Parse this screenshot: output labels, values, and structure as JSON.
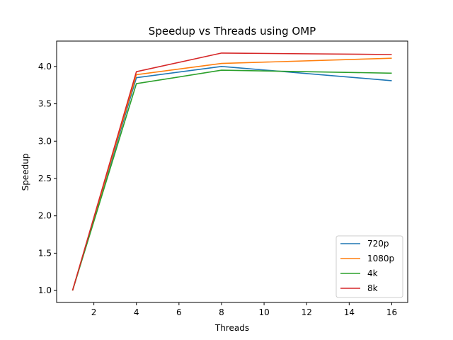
{
  "chart_data": {
    "type": "line",
    "title": "Speedup vs Threads using OMP",
    "xlabel": "Threads",
    "ylabel": "Speedup",
    "xlim": [
      0.25,
      16.75
    ],
    "ylim": [
      0.84,
      4.34
    ],
    "xticks": [
      2,
      4,
      6,
      8,
      10,
      12,
      14,
      16
    ],
    "yticks": [
      1.0,
      1.5,
      2.0,
      2.5,
      3.0,
      3.5,
      4.0
    ],
    "x": [
      1,
      4,
      8,
      16
    ],
    "series": [
      {
        "name": "720p",
        "color": "#1f77b4",
        "values": [
          1.0,
          3.85,
          4.0,
          3.81
        ]
      },
      {
        "name": "1080p",
        "color": "#ff7f0e",
        "values": [
          1.0,
          3.89,
          4.04,
          4.11
        ]
      },
      {
        "name": "4k",
        "color": "#2ca02c",
        "values": [
          1.0,
          3.77,
          3.95,
          3.91
        ]
      },
      {
        "name": "8k",
        "color": "#d62728",
        "values": [
          1.0,
          3.93,
          4.18,
          4.16
        ]
      }
    ],
    "grid": false,
    "legend": "lower right"
  }
}
